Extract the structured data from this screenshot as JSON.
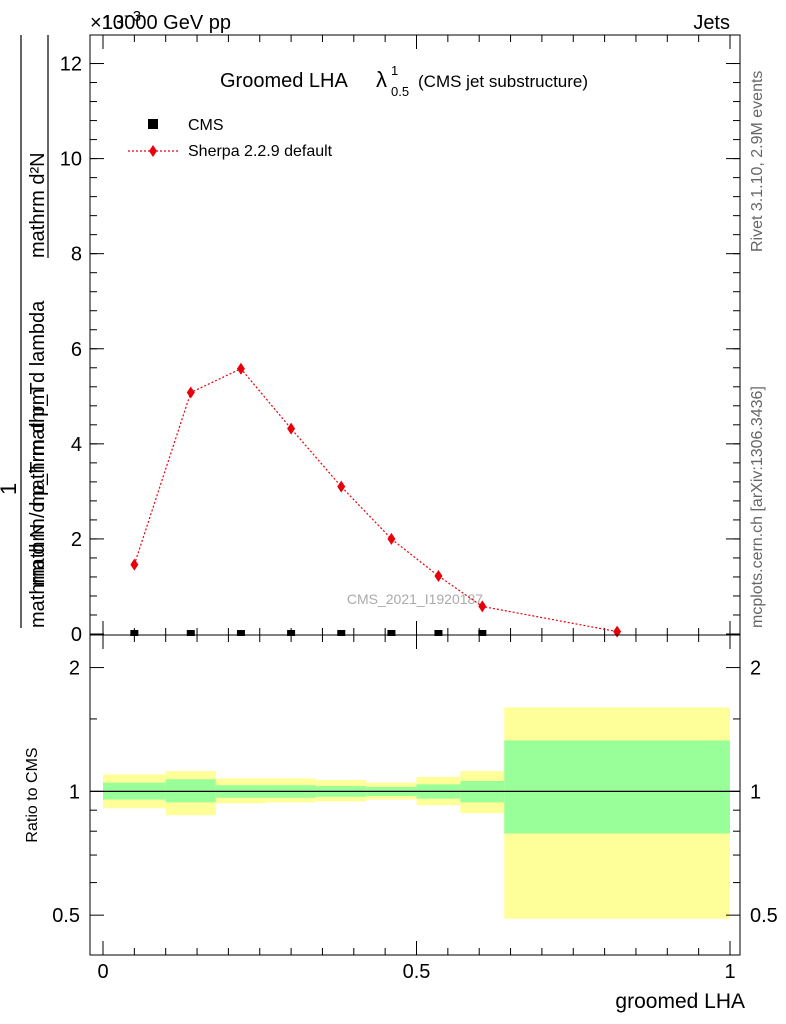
{
  "header": {
    "left": "13000 GeV pp",
    "right": "Jets",
    "exponent": "×10",
    "exponent_power": "−3"
  },
  "side_texts": {
    "rivet": "Rivet 3.1.10,  2.9M events",
    "mcplots": "mcplots.cern.ch [arXiv:1306.3436]"
  },
  "watermark": "CMS_2021_I1920187",
  "colors": {
    "mc_line": "#e8000b",
    "band_inner": "#99ff99",
    "band_outer": "#ffff99",
    "data": "#000000"
  },
  "chart_data": [
    {
      "type": "line",
      "title": "Groomed LHA",
      "title_symbol": "λ",
      "title_sup": "1",
      "title_sub": "0.5",
      "subtitle": "(CMS jet substructure)",
      "ylabel_numerator": "mathrm d²N",
      "ylabel_one": "1",
      "ylabel_upper": "mathrm d p_T mathrm d lambda",
      "ylabel_lower": "mathrm d N / mathrm d p_T",
      "ylim": [
        0,
        12600
      ],
      "yticks": [
        0,
        2,
        4,
        6,
        8,
        10,
        12
      ],
      "xlim": [
        0,
        1
      ],
      "legend_position": "top-left",
      "series": [
        {
          "name": "CMS",
          "marker": "square",
          "x": [
            0.05,
            0.14,
            0.22,
            0.3,
            0.38,
            0.46,
            0.535,
            0.605
          ],
          "y": [
            0,
            0,
            0,
            0,
            0,
            0,
            0,
            0
          ]
        },
        {
          "name": "Sherpa 2.2.9 default",
          "marker": "diamond",
          "x": [
            0.05,
            0.14,
            0.22,
            0.3,
            0.38,
            0.46,
            0.535,
            0.605,
            0.82
          ],
          "y": [
            1460,
            5080,
            5580,
            4320,
            3100,
            2000,
            1220,
            580,
            50
          ]
        }
      ]
    },
    {
      "type": "area",
      "ylabel": "Ratio to CMS",
      "xlabel": "groomed LHA",
      "xticks": [
        "0",
        "0.5",
        "1"
      ],
      "yticks": [
        "0.5",
        "1",
        "2"
      ],
      "ylim": [
        0.4,
        2.4
      ],
      "bins": [
        {
          "lo": 0.0,
          "hi": 0.1,
          "inner": [
            0.955,
            1.05
          ],
          "outer": [
            0.91,
            1.1
          ]
        },
        {
          "lo": 0.1,
          "hi": 0.18,
          "inner": [
            0.94,
            1.07
          ],
          "outer": [
            0.875,
            1.12
          ]
        },
        {
          "lo": 0.18,
          "hi": 0.26,
          "inner": [
            0.965,
            1.035
          ],
          "outer": [
            0.935,
            1.075
          ]
        },
        {
          "lo": 0.26,
          "hi": 0.34,
          "inner": [
            0.965,
            1.035
          ],
          "outer": [
            0.94,
            1.075
          ]
        },
        {
          "lo": 0.34,
          "hi": 0.42,
          "inner": [
            0.97,
            1.03
          ],
          "outer": [
            0.945,
            1.065
          ]
        },
        {
          "lo": 0.42,
          "hi": 0.5,
          "inner": [
            0.975,
            1.025
          ],
          "outer": [
            0.955,
            1.05
          ]
        },
        {
          "lo": 0.5,
          "hi": 0.57,
          "inner": [
            0.96,
            1.04
          ],
          "outer": [
            0.925,
            1.085
          ]
        },
        {
          "lo": 0.57,
          "hi": 0.64,
          "inner": [
            0.94,
            1.06
          ],
          "outer": [
            0.885,
            1.12
          ]
        },
        {
          "lo": 0.64,
          "hi": 1.0,
          "inner": [
            0.79,
            1.33
          ],
          "outer": [
            0.49,
            1.6
          ]
        }
      ],
      "reference": 1
    }
  ]
}
